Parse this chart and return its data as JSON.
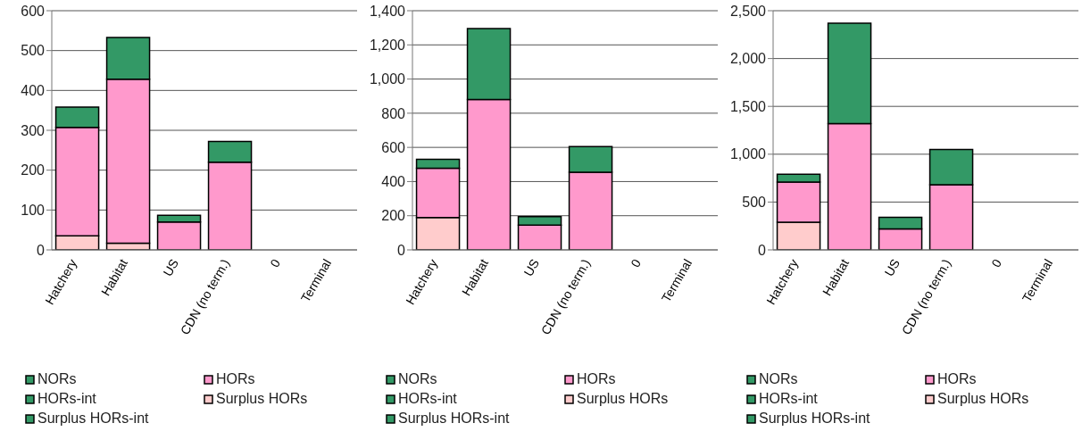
{
  "chart_data": [
    {
      "type": "bar",
      "stacked": true,
      "categories": [
        "Hatchery",
        "Habitat",
        "US",
        "CDN (no term.)",
        "0",
        "Terminal"
      ],
      "series": [
        {
          "name": "Surplus HORs-int",
          "color": "#339966",
          "values": [
            0,
            0,
            0,
            0,
            0,
            0
          ]
        },
        {
          "name": "Surplus HORs",
          "color": "#ffcccc",
          "values": [
            35,
            17,
            0,
            0,
            0,
            0
          ]
        },
        {
          "name": "HORs-int",
          "color": "#339966",
          "values": [
            0,
            0,
            0,
            0,
            0,
            0
          ]
        },
        {
          "name": "HORs",
          "color": "#ff99cc",
          "values": [
            272,
            411,
            70,
            220,
            0,
            0
          ]
        },
        {
          "name": "NORs",
          "color": "#339966",
          "values": [
            51,
            105,
            17,
            52,
            0,
            0
          ]
        }
      ],
      "ylim": [
        0,
        600
      ],
      "yticks": [
        0,
        100,
        200,
        300,
        400,
        500,
        600
      ],
      "grid": "y",
      "legend": "bottom"
    },
    {
      "type": "bar",
      "stacked": true,
      "categories": [
        "Hatchery",
        "Habitat",
        "US",
        "CDN (no term.)",
        "0",
        "Terminal"
      ],
      "series": [
        {
          "name": "Surplus HORs-int",
          "color": "#339966",
          "values": [
            0,
            0,
            0,
            0,
            0,
            0
          ]
        },
        {
          "name": "Surplus HORs",
          "color": "#ffcccc",
          "values": [
            190,
            0,
            0,
            0,
            0,
            0
          ]
        },
        {
          "name": "HORs-int",
          "color": "#339966",
          "values": [
            0,
            0,
            0,
            0,
            0,
            0
          ]
        },
        {
          "name": "HORs",
          "color": "#ff99cc",
          "values": [
            288,
            880,
            145,
            455,
            0,
            0
          ]
        },
        {
          "name": "NORs",
          "color": "#339966",
          "values": [
            52,
            415,
            50,
            150,
            0,
            0
          ]
        }
      ],
      "ylim": [
        0,
        1400
      ],
      "yticks": [
        0,
        200,
        400,
        600,
        800,
        {
          "value": 1000,
          "label": "1,000"
        },
        {
          "value": 1200,
          "label": "1,200"
        },
        {
          "value": 1400,
          "label": "1,400"
        }
      ],
      "grid": "y",
      "legend": "bottom"
    },
    {
      "type": "bar",
      "stacked": true,
      "categories": [
        "Hatchery",
        "Habitat",
        "US",
        "CDN (no term.)",
        "0",
        "Terminal"
      ],
      "series": [
        {
          "name": "Surplus HORs-int",
          "color": "#339966",
          "values": [
            0,
            0,
            0,
            0,
            0,
            0
          ]
        },
        {
          "name": "Surplus HORs",
          "color": "#ffcccc",
          "values": [
            290,
            0,
            0,
            0,
            0,
            0
          ]
        },
        {
          "name": "HORs-int",
          "color": "#339966",
          "values": [
            0,
            0,
            0,
            0,
            0,
            0
          ]
        },
        {
          "name": "HORs",
          "color": "#ff99cc",
          "values": [
            420,
            1320,
            220,
            680,
            0,
            0
          ]
        },
        {
          "name": "NORs",
          "color": "#339966",
          "values": [
            80,
            1050,
            120,
            370,
            0,
            0
          ]
        }
      ],
      "ylim": [
        0,
        2500
      ],
      "yticks": [
        0,
        500,
        {
          "value": 1000,
          "label": "1,000"
        },
        {
          "value": 1500,
          "label": "1,500"
        },
        {
          "value": 2000,
          "label": "2,000"
        },
        {
          "value": 2500,
          "label": "2,500"
        }
      ],
      "grid": "y",
      "legend": "bottom"
    }
  ]
}
